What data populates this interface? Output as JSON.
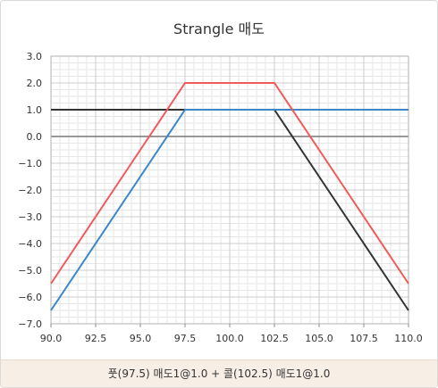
{
  "chart_data": {
    "type": "line",
    "title": "Strangle 매도",
    "caption": "풋(97.5) 매도1@1.0 + 콜(102.5) 매도1@1.0",
    "xlim": [
      90,
      110
    ],
    "ylim": [
      -7,
      3
    ],
    "x_ticks": [
      90,
      92.5,
      95,
      97.5,
      100,
      102.5,
      105,
      107.5,
      110
    ],
    "x_tick_labels": [
      "90.0",
      "92.5",
      "95.0",
      "97.5",
      "100.0",
      "102.5",
      "105.0",
      "107.5",
      "110.0"
    ],
    "y_ticks": [
      3,
      2,
      1,
      0,
      -1,
      -2,
      -3,
      -4,
      -5,
      -6,
      -7
    ],
    "y_tick_labels": [
      "3.0",
      "2.0",
      "1.0",
      "0.0",
      "−1.0",
      "−2.0",
      "−3.0",
      "−4.0",
      "−5.0",
      "−6.0",
      "−7.0"
    ],
    "grid": true,
    "series": [
      {
        "color": "#333333",
        "points": [
          [
            90,
            1.0
          ],
          [
            97.5,
            1.0
          ],
          [
            102.5,
            1.0
          ],
          [
            110,
            -6.5
          ]
        ]
      },
      {
        "color": "#3a86c8",
        "points": [
          [
            90,
            -6.5
          ],
          [
            97.5,
            1.0
          ],
          [
            102.5,
            1.0
          ],
          [
            110,
            1.0
          ]
        ]
      },
      {
        "color": "#f05a5a",
        "points": [
          [
            90,
            -5.5
          ],
          [
            97.5,
            2.0
          ],
          [
            102.5,
            2.0
          ],
          [
            110,
            -5.5
          ]
        ]
      }
    ]
  }
}
